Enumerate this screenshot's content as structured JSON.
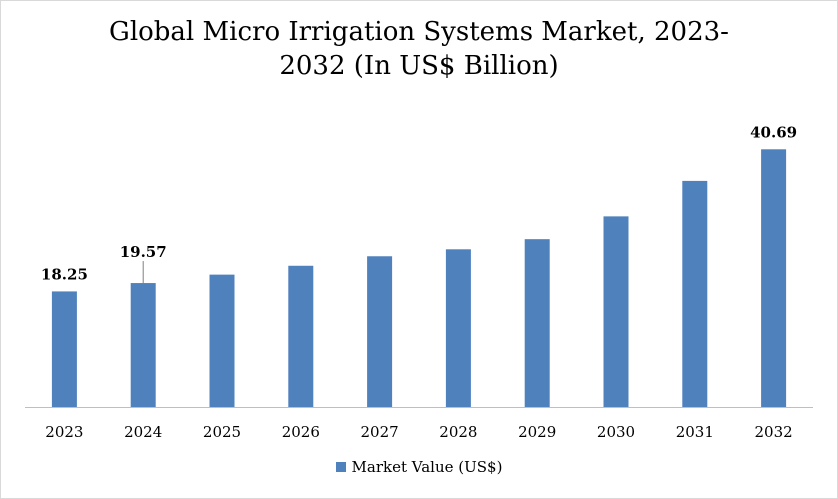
{
  "chart_data": {
    "type": "bar",
    "title_line1": "Global Micro Irrigation Systems Market, 2023-",
    "title_line2": "2032 (In US$ Billion)",
    "categories": [
      "2023",
      "2024",
      "2025",
      "2026",
      "2027",
      "2028",
      "2029",
      "2030",
      "2031",
      "2032"
    ],
    "series": [
      {
        "name": "Market Value (US$)",
        "values": [
          18.25,
          19.57,
          20.9,
          22.3,
          23.8,
          24.9,
          26.5,
          30.1,
          35.7,
          40.69
        ]
      }
    ],
    "data_labels": [
      {
        "index": 0,
        "text": "18.25"
      },
      {
        "index": 1,
        "text": "19.57"
      },
      {
        "index": 9,
        "text": "40.69"
      }
    ],
    "ylim": [
      0,
      45
    ],
    "grid": false,
    "legend_position": "bottom",
    "color": "#4f81bd"
  }
}
